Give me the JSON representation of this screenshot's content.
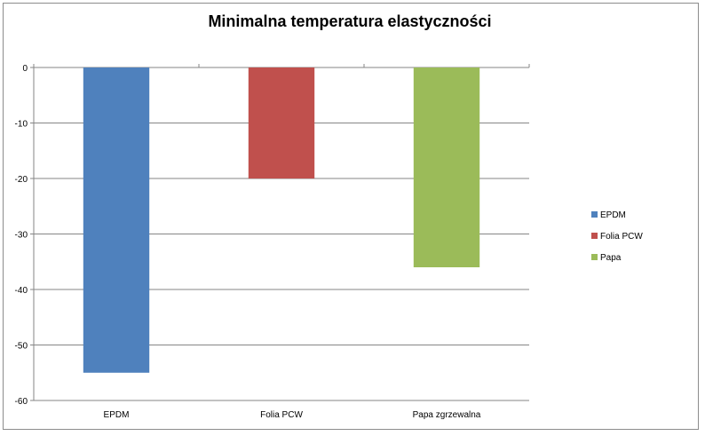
{
  "chart_data": {
    "type": "bar",
    "title": "Minimalna temperatura elastyczności",
    "categories": [
      "EPDM",
      "Folia PCW",
      "Papa zgrzewalna"
    ],
    "series": [
      {
        "name": "EPDM",
        "color": "#4f81bd",
        "values": [
          -55,
          null,
          null
        ]
      },
      {
        "name": "Folia PCW",
        "color": "#c0504d",
        "values": [
          null,
          -20,
          null
        ]
      },
      {
        "name": "Papa",
        "color": "#9bbb59",
        "values": [
          null,
          null,
          -36
        ]
      }
    ],
    "ylim": [
      -60,
      0
    ],
    "yticks": [
      "0",
      "-10",
      "-20",
      "-30",
      "-40",
      "-50",
      "-60"
    ],
    "grid": true,
    "legend": "right"
  }
}
